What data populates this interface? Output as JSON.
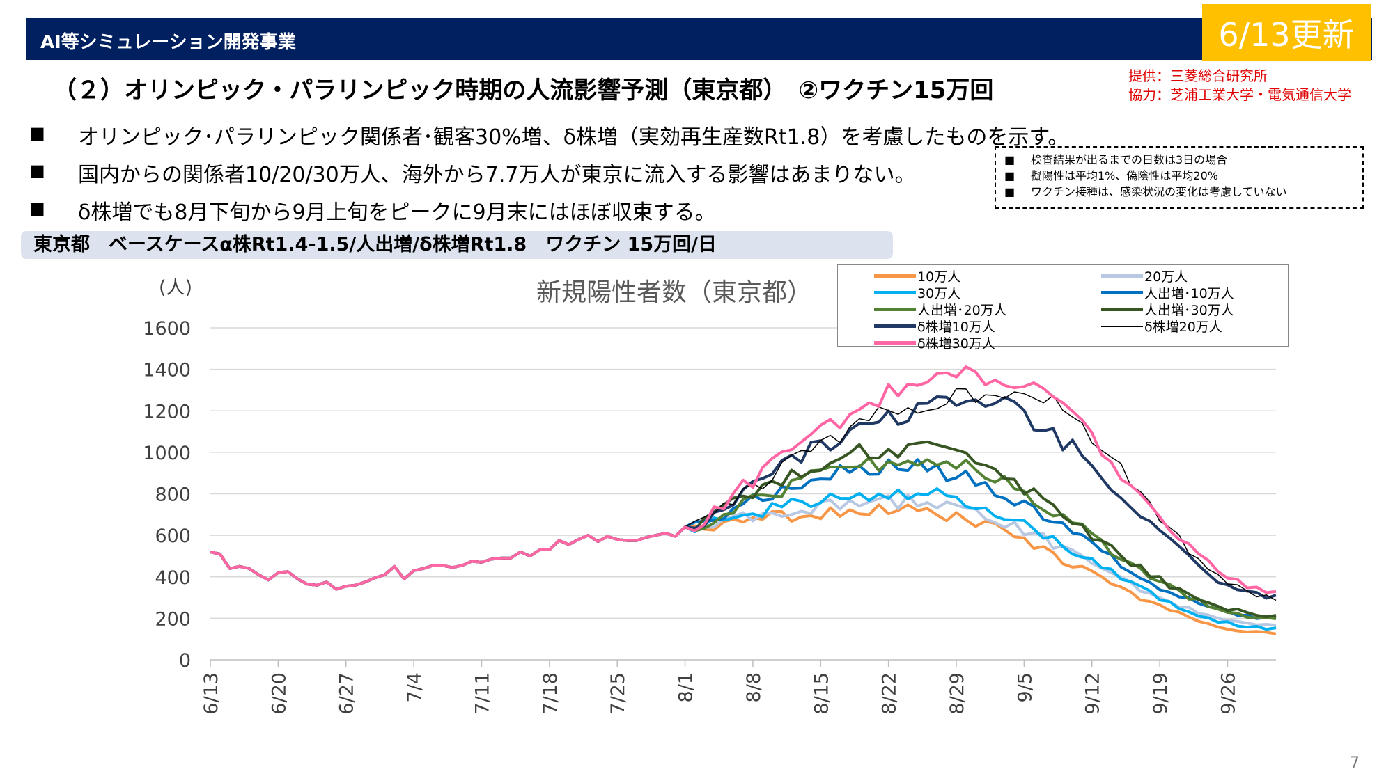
{
  "header": {
    "program": "AI等シミュレーション開発事業",
    "update_badge": "6/13更新"
  },
  "slide": {
    "title": "（２）オリンピック・パラリンピック時期の人流影響予測（東京都）　②ワクチン15万回",
    "credit_provider": "提供：三菱総合研究所",
    "credit_cooperation": "協力：芝浦工業大学・電気通信大学",
    "bullet_marker": "■",
    "bullets": [
      "オリンピック･パラリンピック関係者･観客30%増、δ株増（実効再生産数Rt1.8）を考慮したものを示す。",
      "国内からの関係者10/20/30万人、海外から7.7万人が東京に流入する影響はあまりない。",
      "δ株増でも8月下旬から9月上旬をピークに9月末にはほぼ収束する。"
    ],
    "notes": [
      "検査結果が出るまでの日数は3日の場合",
      "擬陽性は平均1%、偽陰性は平均20%",
      "ワクチン接種は、感染状況の変化は考慮していない"
    ],
    "scenario_label": "東京都　ベースケースα株Rt1.4-1.5/人出増/δ株増Rt1.8　ワクチン 15万回/日",
    "page_number": "7"
  },
  "chart_data": {
    "type": "line",
    "title": "新規陽性者数（東京都）",
    "ylabel": "(人)",
    "ylim": [
      0,
      1600
    ],
    "yticks": [
      0,
      200,
      400,
      600,
      800,
      1000,
      1200,
      1400,
      1600
    ],
    "grid": true,
    "legend_position": "top-right",
    "x_tick_labels": [
      "6/13",
      "6/20",
      "6/27",
      "7/4",
      "7/11",
      "7/18",
      "7/25",
      "8/1",
      "8/8",
      "8/15",
      "8/22",
      "8/29",
      "9/5",
      "9/12",
      "9/19",
      "9/26"
    ],
    "x_start": "6/13",
    "x_end": "9/30",
    "base_values": [
      520,
      510,
      440,
      450,
      440,
      410,
      385,
      420,
      425,
      390,
      365,
      360,
      375,
      340,
      355,
      360,
      375,
      395,
      410,
      450,
      390,
      430,
      440,
      455,
      455,
      445,
      455,
      475,
      470,
      485,
      490,
      490,
      520,
      500,
      530,
      530,
      575,
      555,
      580,
      600,
      570,
      595,
      580,
      575,
      575,
      590,
      600,
      610,
      595,
      640
    ],
    "series": [
      {
        "name": "10万人",
        "color": "#f79646",
        "width": 4,
        "peak_day": 71,
        "peak": 720,
        "end": 130
      },
      {
        "name": "20万人",
        "color": "#b8c7e2",
        "width": 4,
        "peak_day": 72,
        "peak": 760,
        "end": 165
      },
      {
        "name": "30万人",
        "color": "#00b0f0",
        "width": 4,
        "peak_day": 72,
        "peak": 800,
        "end": 150
      },
      {
        "name": "人出増･10万人",
        "color": "#0070c0",
        "width": 4,
        "peak_day": 71,
        "peak": 930,
        "end": 195
      },
      {
        "name": "人出増･20万人",
        "color": "#548235",
        "width": 4,
        "peak_day": 73,
        "peak": 960,
        "end": 200
      },
      {
        "name": "人出増･30万人",
        "color": "#375623",
        "width": 4,
        "peak_day": 71,
        "peak": 1020,
        "end": 215
      },
      {
        "name": "δ株増10万人",
        "color": "#1f3864",
        "width": 4,
        "peak_day": 79,
        "peak": 1240,
        "end": 305
      },
      {
        "name": "δ株増20万人",
        "color": "#000000",
        "width": 1.5,
        "peak_day": 82,
        "peak": 1300,
        "end": 300
      },
      {
        "name": "δ株増30万人",
        "color": "#ff66a3",
        "width": 4,
        "peak_day": 80,
        "peak": 1375,
        "end": 330
      }
    ]
  }
}
